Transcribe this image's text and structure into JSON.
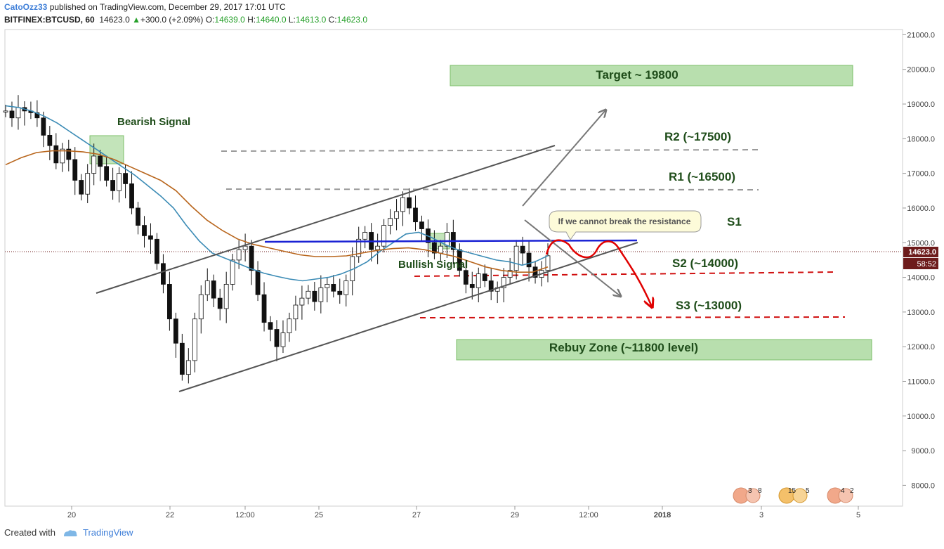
{
  "header": {
    "author": "CatoOzz33",
    "published": " published on TradingView.com, December 29, 2017 17:01 UTC",
    "symbol": "BITFINEX:BTCUSD, 60",
    "last": "14623.0",
    "change": "+300.0 (+2.09%)",
    "open_label": "O:",
    "open": "14639.0",
    "high_label": "H:",
    "high": "14640.0",
    "low_label": "L:",
    "low": "14613.0",
    "close_label": "C:",
    "close": "14623.0"
  },
  "footer": {
    "created_with": "Created with",
    "brand": "TradingView"
  },
  "colors": {
    "ema_blue": "#3b8bb5",
    "ema_orange": "#b8651c",
    "candles": "#000000",
    "zone_fill": "#b8dfae",
    "zone_stroke": "#7cbf6a",
    "annotation_text": "#1f4d1a",
    "resistance_line": "#1a22d4",
    "support_dash": "#d01010",
    "price_badge": "#6d1b1b"
  },
  "chart_data": {
    "type": "line",
    "title": "",
    "ylim": [
      7400,
      21150
    ],
    "y_ticks": [
      "21000.0",
      "20000.0",
      "19000.0",
      "18000.0",
      "17000.0",
      "16000.0",
      "15000.0",
      "14000.0",
      "13000.0",
      "12000.0",
      "11000.0",
      "10000.0",
      "9000.0",
      "8000.0"
    ],
    "x_ticks": [
      "20",
      "22",
      "12:00",
      "25",
      "27",
      "29",
      "12:00",
      "2018",
      "3",
      "5"
    ],
    "last_price_label": "14623.0",
    "countdown_label": "58:52",
    "series": [
      {
        "kind": "price",
        "values": [
          18800,
          18600,
          18900,
          18800,
          18750,
          18600,
          18100,
          17800,
          17300,
          17700,
          17400,
          16800,
          16400,
          17000,
          17500,
          17200,
          16800,
          16500,
          17000,
          16700,
          16000,
          15500,
          15200,
          15100,
          14400,
          13800,
          12800,
          12100,
          11200,
          11600,
          12800,
          13500,
          13900,
          13400,
          13100,
          13800,
          14500,
          14800,
          14900,
          14200,
          13500,
          12700,
          12500,
          12000,
          12400,
          12800,
          13200,
          13400,
          13600,
          13300,
          13700,
          13800,
          13600,
          13500,
          13900,
          14600,
          15100,
          15300,
          14800,
          14900,
          15500,
          15700,
          15900,
          16300,
          16000,
          15600,
          15400,
          15000,
          14700,
          14900,
          15300,
          14800,
          14200,
          13800,
          13700,
          14100,
          13900,
          13600,
          13700,
          14000,
          14200,
          14900,
          14700,
          14300,
          14000,
          14200,
          14623
        ]
      },
      {
        "kind": "ema-fast",
        "values": [
          18950,
          18900,
          18800,
          18650,
          18450,
          18200,
          17950,
          17700,
          17450,
          17200,
          16950,
          16650,
          16350,
          16000,
          15500,
          15050,
          14700,
          14550,
          14400,
          14250,
          14120,
          14030,
          13950,
          13900,
          13950,
          14000,
          14100,
          14250,
          14450,
          14750,
          15000,
          15250,
          15300,
          15150,
          14950,
          14800,
          14700,
          14600,
          14500,
          14450,
          14350,
          14450,
          14623
        ]
      },
      {
        "kind": "ema-slow",
        "values": [
          17250,
          17450,
          17600,
          17650,
          17650,
          17620,
          17550,
          17400,
          17200,
          17000,
          16800,
          16500,
          16050,
          15650,
          15350,
          15100,
          14950,
          14850,
          14750,
          14650,
          14600,
          14600,
          14620,
          14700,
          14780,
          14830,
          14850,
          14800,
          14700,
          14600,
          14450,
          14300,
          14200,
          14150,
          14150,
          14300
        ]
      }
    ],
    "annotations": {
      "target": "Target ~ 19800",
      "r2": "R2 (~17500)",
      "r1": "R1 (~16500)",
      "s1": "S1",
      "s2": "S2 (~14000)",
      "s3": "S3 (~13000)",
      "rebuy": "Rebuy Zone (~11800 level)",
      "bearish": "Bearish Signal",
      "bullish": "Bullish Signal",
      "callout": "If we cannot break the resistance"
    },
    "events": {
      "e1_icon": "us-flag-icon",
      "e1_a": "3",
      "e1_b": "8",
      "e2_icon": "us-flag-icon",
      "e2_a": "15",
      "e2_b": "5",
      "e3_icon": "us-flag-icon",
      "e3_a": "4",
      "e3_b": "2"
    }
  }
}
